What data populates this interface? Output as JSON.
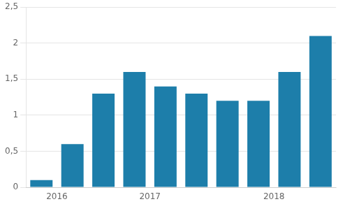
{
  "chart_data": {
    "type": "bar",
    "categories": [
      "2016",
      null,
      "2017",
      null,
      null,
      null,
      "2018",
      null,
      null,
      null
    ],
    "values": [
      0.1,
      0.6,
      1.3,
      1.6,
      1.4,
      1.3,
      1.2,
      1.2,
      1.6,
      2.1
    ],
    "color": "#1d7eaa",
    "ylim": [
      0,
      2.5
    ],
    "yticks": [
      0,
      {
        "value": 0.5,
        "label": "0,5"
      },
      1,
      {
        "value": 1.5,
        "label": "1,5"
      },
      2,
      {
        "value": 2.5,
        "label": "2,5"
      }
    ],
    "grid": true
  }
}
